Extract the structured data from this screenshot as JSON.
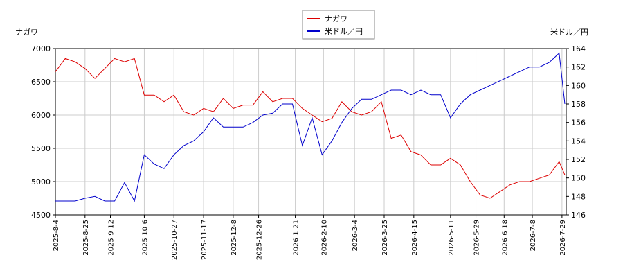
{
  "chart_data": {
    "type": "line",
    "y_label": "ナガワ",
    "y2_label": "米ドル／円",
    "x": [
      "2025-8-4",
      "2025-8-11",
      "2025-8-18",
      "2025-8-25",
      "2025-9-1",
      "2025-9-8",
      "2025-9-15",
      "2025-9-22",
      "2025-9-29",
      "2025-10-6",
      "2025-10-13",
      "2025-10-20",
      "2025-10-27",
      "2025-11-3",
      "2025-11-10",
      "2025-11-17",
      "2025-11-24",
      "2025-12-1",
      "2025-12-8",
      "2025-12-15",
      "2025-12-22",
      "2025-12-29",
      "2026-1-5",
      "2026-1-12",
      "2026-1-19",
      "2026-1-26",
      "2026-2-2",
      "2026-2-9",
      "2026-2-16",
      "2026-2-23",
      "2026-3-2",
      "2026-3-9",
      "2026-3-16",
      "2026-3-23",
      "2026-3-30",
      "2026-4-6",
      "2026-4-13",
      "2026-4-20",
      "2026-4-27",
      "2026-5-4",
      "2026-5-11",
      "2026-5-18",
      "2026-5-25",
      "2026-6-1",
      "2026-6-8",
      "2026-6-15",
      "2026-6-22",
      "2026-6-29",
      "2026-7-6",
      "2026-7-13",
      "2026-7-20",
      "2026-7-27",
      "2026-7-31"
    ],
    "series": [
      {
        "name": "ナガワ",
        "color": "#dd0000",
        "axis": "y",
        "values": [
          6650,
          6850,
          6800,
          6700,
          6550,
          6700,
          6850,
          6800,
          6850,
          6300,
          6300,
          6200,
          6300,
          6050,
          6000,
          6100,
          6050,
          6250,
          6100,
          6150,
          6150,
          6350,
          6200,
          6250,
          6250,
          6100,
          6000,
          5900,
          5950,
          6200,
          6050,
          6000,
          6050,
          6200,
          5650,
          5700,
          5450,
          5400,
          5250,
          5250,
          5350,
          5250,
          5000,
          4800,
          4750,
          4850,
          4950,
          5000,
          5000,
          5050,
          5100,
          5300,
          5100
        ]
      },
      {
        "name": "米ドル／円",
        "color": "#0000cc",
        "axis": "y2",
        "values": [
          147.5,
          147.5,
          147.5,
          147.8,
          148.0,
          147.5,
          147.5,
          149.5,
          147.5,
          152.5,
          151.5,
          151.0,
          152.5,
          153.5,
          154.0,
          155.0,
          156.5,
          155.5,
          155.5,
          155.5,
          156.0,
          156.8,
          157.0,
          158.0,
          158.0,
          153.5,
          156.5,
          152.5,
          154.0,
          156.0,
          157.5,
          158.5,
          158.5,
          159.0,
          159.5,
          159.5,
          159.0,
          159.5,
          159.0,
          159.0,
          156.5,
          158.0,
          159.0,
          159.5,
          160.0,
          160.5,
          161.0,
          161.5,
          162.0,
          162.0,
          162.5,
          163.5,
          158.0
        ]
      }
    ],
    "xlim": [
      "2025-8-4",
      "2026-8-1"
    ],
    "xticks": [
      "2025-8-4",
      "2025-8-25",
      "2025-9-12",
      "2025-10-6",
      "2025-10-27",
      "2025-11-17",
      "2025-12-8",
      "2025-12-26",
      "2026-1-21",
      "2026-2-10",
      "2026-3-4",
      "2026-3-25",
      "2026-4-15",
      "2026-5-11",
      "2026-5-29",
      "2026-6-18",
      "2026-7-8",
      "2026-7-29"
    ],
    "ylim": [
      4500,
      7000
    ],
    "yticks": [
      4500,
      5000,
      5500,
      6000,
      6500,
      7000
    ],
    "y2lim": [
      146,
      164
    ],
    "y2ticks": [
      146,
      148,
      150,
      152,
      154,
      156,
      158,
      160,
      162,
      164
    ],
    "grid": true
  }
}
